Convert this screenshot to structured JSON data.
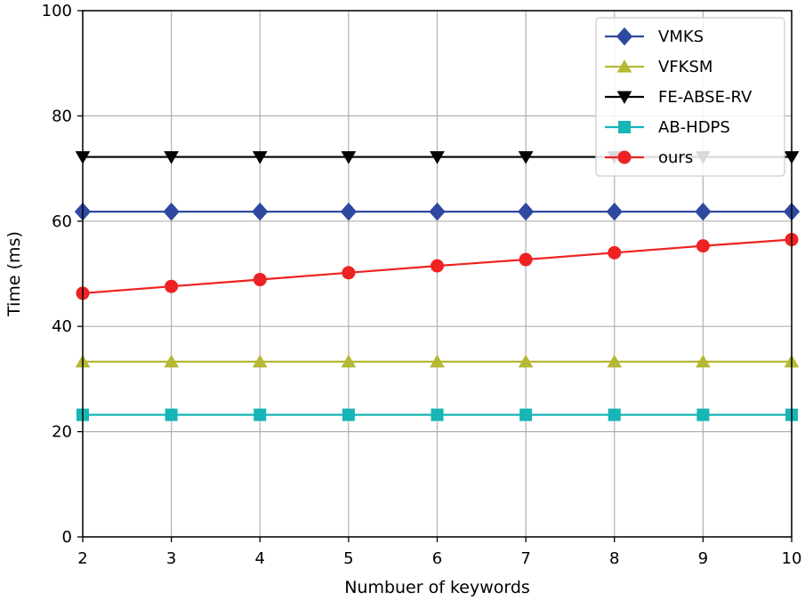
{
  "chart_data": {
    "type": "line",
    "xlabel": "Numbuer of keywords",
    "ylabel": "Time (ms)",
    "xlim": [
      2,
      10
    ],
    "ylim": [
      0,
      100
    ],
    "xticks": [
      2,
      3,
      4,
      5,
      6,
      7,
      8,
      9,
      10
    ],
    "yticks": [
      0,
      20,
      40,
      60,
      80,
      100
    ],
    "grid": true,
    "legend_position": "top-right",
    "x": [
      2,
      3,
      4,
      5,
      6,
      7,
      8,
      9,
      10
    ],
    "series": [
      {
        "name": "VMKS",
        "color": "#2f49a0",
        "marker": "diamond",
        "values": [
          61.8,
          61.8,
          61.8,
          61.8,
          61.8,
          61.8,
          61.8,
          61.8,
          61.8
        ]
      },
      {
        "name": "VFKSM",
        "color": "#b5b832",
        "marker": "triangle-up",
        "values": [
          33.3,
          33.3,
          33.3,
          33.3,
          33.3,
          33.3,
          33.3,
          33.3,
          33.3
        ]
      },
      {
        "name": "FE-ABSE-RV",
        "color": "#000000",
        "marker": "triangle-down",
        "values": [
          72.2,
          72.2,
          72.2,
          72.2,
          72.2,
          72.2,
          72.2,
          72.2,
          72.2
        ]
      },
      {
        "name": "AB-HDPS",
        "color": "#17b5b5",
        "marker": "square",
        "values": [
          23.2,
          23.2,
          23.2,
          23.2,
          23.2,
          23.2,
          23.2,
          23.2,
          23.2
        ]
      },
      {
        "name": "ours",
        "color": "#ee2222",
        "marker": "circle",
        "values": [
          46.3,
          47.6,
          48.9,
          50.2,
          51.5,
          52.7,
          54.0,
          55.3,
          56.5
        ]
      }
    ]
  }
}
